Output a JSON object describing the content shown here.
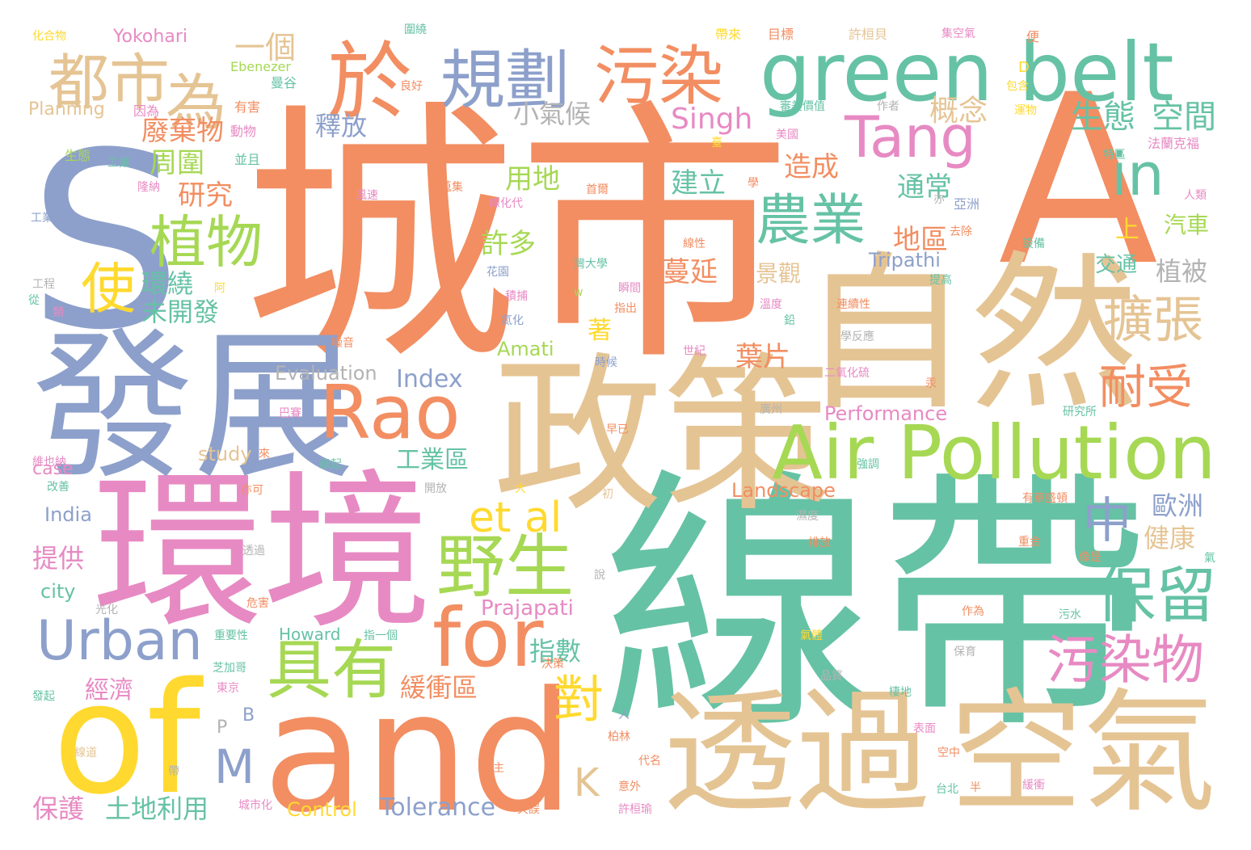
{
  "palette": {
    "orange": "#F28E62",
    "teal": "#66C2A5",
    "blue": "#8DA0CB",
    "pink": "#E78AC3",
    "green": "#A6D854",
    "yellow": "#FFD92F",
    "tan": "#E5C494",
    "gray": "#B3B3B3"
  },
  "words": [
    {
      "text": "城市",
      "color": "#F28E62"
    },
    {
      "text": "線帶",
      "color": "#66C2A5"
    },
    {
      "text": "S",
      "color": "#8DA0CB"
    },
    {
      "text": "A",
      "color": "#F28E62"
    },
    {
      "text": "環境",
      "color": "#E78AC3"
    },
    {
      "text": "發展",
      "color": "#8DA0CB"
    },
    {
      "text": "政策",
      "color": "#E5C494"
    },
    {
      "text": "自然",
      "color": "#E5C494"
    },
    {
      "text": "透過",
      "color": "#E5C494"
    },
    {
      "text": "空氣",
      "color": "#E5C494"
    },
    {
      "text": "and",
      "color": "#F28E62"
    },
    {
      "text": "of",
      "color": "#FFD92F"
    },
    {
      "text": "green belt",
      "color": "#66C2A5"
    },
    {
      "text": "Air Pollution",
      "color": "#A6D854"
    },
    {
      "text": "Rao",
      "color": "#F28E62"
    },
    {
      "text": "於",
      "color": "#F28E62"
    },
    {
      "text": "規劃",
      "color": "#8DA0CB"
    },
    {
      "text": "污染",
      "color": "#F28E62"
    },
    {
      "text": "都市",
      "color": "#E5C494"
    },
    {
      "text": "為",
      "color": "#E5C494"
    },
    {
      "text": "一個",
      "color": "#E5C494"
    },
    {
      "text": "Tang",
      "color": "#E78AC3"
    },
    {
      "text": "in",
      "color": "#66C2A5"
    },
    {
      "text": "農業",
      "color": "#66C2A5"
    },
    {
      "text": "植物",
      "color": "#A6D854"
    },
    {
      "text": "使",
      "color": "#FFD92F"
    },
    {
      "text": "for",
      "color": "#F28E62"
    },
    {
      "text": "et al",
      "color": "#FFD92F"
    },
    {
      "text": "野生",
      "color": "#A6D854"
    },
    {
      "text": "具有",
      "color": "#A6D854"
    },
    {
      "text": "Urban",
      "color": "#8DA0CB"
    },
    {
      "text": "擴張",
      "color": "#E5C494"
    },
    {
      "text": "耐受",
      "color": "#F28E62"
    },
    {
      "text": "保留",
      "color": "#66C2A5"
    },
    {
      "text": "污染物",
      "color": "#E78AC3"
    },
    {
      "text": "中",
      "color": "#8DA0CB"
    },
    {
      "text": "對",
      "color": "#FFD92F"
    },
    {
      "text": "M",
      "color": "#8DA0CB"
    },
    {
      "text": "K",
      "color": "#E5C494"
    },
    {
      "text": "生態",
      "color": "#66C2A5"
    },
    {
      "text": "空間",
      "color": "#66C2A5"
    },
    {
      "text": "概念",
      "color": "#E5C494"
    },
    {
      "text": "Singh",
      "color": "#E78AC3"
    },
    {
      "text": "小氣候",
      "color": "#B3B3B3"
    },
    {
      "text": "釋放",
      "color": "#8DA0CB"
    },
    {
      "text": "廢棄物",
      "color": "#F28E62"
    },
    {
      "text": "周圍",
      "color": "#A6D854"
    },
    {
      "text": "研究",
      "color": "#F28E62"
    },
    {
      "text": "用地",
      "color": "#A6D854"
    },
    {
      "text": "建立",
      "color": "#66C2A5"
    },
    {
      "text": "造成",
      "color": "#F28E62"
    },
    {
      "text": "通常",
      "color": "#66C2A5"
    },
    {
      "text": "地區",
      "color": "#F28E62"
    },
    {
      "text": "許多",
      "color": "#A6D854"
    },
    {
      "text": "蔓延",
      "color": "#F28E62"
    },
    {
      "text": "環繞",
      "color": "#66C2A5"
    },
    {
      "text": "未開發",
      "color": "#66C2A5"
    },
    {
      "text": "著",
      "color": "#FFD92F"
    },
    {
      "text": "葉片",
      "color": "#F28E62"
    },
    {
      "text": "Tripathi",
      "color": "#8DA0CB"
    },
    {
      "text": "植被",
      "color": "#B3B3B3"
    },
    {
      "text": "上",
      "color": "#FFD92F"
    },
    {
      "text": "汽車",
      "color": "#A6D854"
    },
    {
      "text": "交通",
      "color": "#66C2A5"
    },
    {
      "text": "景觀",
      "color": "#E5C494"
    },
    {
      "text": "Amati",
      "color": "#A6D854"
    },
    {
      "text": "Index",
      "color": "#8DA0CB"
    },
    {
      "text": "Evaluation",
      "color": "#B3B3B3"
    },
    {
      "text": "Performance",
      "color": "#E78AC3"
    },
    {
      "text": "工業區",
      "color": "#66C2A5"
    },
    {
      "text": "study",
      "color": "#E5C494"
    },
    {
      "text": "case",
      "color": "#E78AC3"
    },
    {
      "text": "India",
      "color": "#8DA0CB"
    },
    {
      "text": "Landscape",
      "color": "#F28E62"
    },
    {
      "text": "歐洲",
      "color": "#8DA0CB"
    },
    {
      "text": "健康",
      "color": "#E5C494"
    },
    {
      "text": "提供",
      "color": "#E78AC3"
    },
    {
      "text": "city",
      "color": "#66C2A5"
    },
    {
      "text": "Prajapati",
      "color": "#E78AC3"
    },
    {
      "text": "指數",
      "color": "#66C2A5"
    },
    {
      "text": "緩衝區",
      "color": "#F28E62"
    },
    {
      "text": "經濟",
      "color": "#E78AC3"
    },
    {
      "text": "Howard",
      "color": "#66C2A5"
    },
    {
      "text": "保護",
      "color": "#E78AC3"
    },
    {
      "text": "土地利用",
      "color": "#66C2A5"
    },
    {
      "text": "Control",
      "color": "#FFD92F"
    },
    {
      "text": "Tolerance",
      "color": "#8DA0CB"
    },
    {
      "text": "Yokohari",
      "color": "#E78AC3"
    },
    {
      "text": "Ebenezer",
      "color": "#A6D854"
    },
    {
      "text": "Planning",
      "color": "#E5C494"
    },
    {
      "text": "曼谷",
      "color": "#66C2A5"
    },
    {
      "text": "化合物",
      "color": "#FFD92F"
    },
    {
      "text": "圍繞",
      "color": "#66C2A5"
    },
    {
      "text": "帶來",
      "color": "#FFD92F"
    },
    {
      "text": "目標",
      "color": "#F28E62"
    },
    {
      "text": "許桓貝",
      "color": "#E5C494"
    },
    {
      "text": "集空氣",
      "color": "#E78AC3"
    },
    {
      "text": "便",
      "color": "#F28E62"
    },
    {
      "text": "D",
      "color": "#FFD92F"
    },
    {
      "text": "包含",
      "color": "#FFD92F"
    },
    {
      "text": "良好",
      "color": "#F28E62"
    },
    {
      "text": "因為",
      "color": "#E78AC3"
    },
    {
      "text": "有害",
      "color": "#F28E62"
    },
    {
      "text": "審美價值",
      "color": "#66C2A5"
    },
    {
      "text": "作者",
      "color": "#B3B3B3"
    },
    {
      "text": "臺",
      "color": "#FFD92F"
    },
    {
      "text": "運物",
      "color": "#FFD92F"
    },
    {
      "text": "動物",
      "color": "#E78AC3"
    },
    {
      "text": "美國",
      "color": "#E78AC3"
    },
    {
      "text": "法蘭克福",
      "color": "#E78AC3"
    },
    {
      "text": "生態",
      "color": "#A6D854"
    },
    {
      "text": "工業",
      "color": "#66C2A5"
    },
    {
      "text": "並且",
      "color": "#66C2A5"
    },
    {
      "text": "特區",
      "color": "#66C2A5"
    },
    {
      "text": "隆納",
      "color": "#E78AC3"
    },
    {
      "text": "風速",
      "color": "#E78AC3"
    },
    {
      "text": "蒐集",
      "color": "#F28E62"
    },
    {
      "text": "線化代",
      "color": "#E78AC3"
    },
    {
      "text": "首爾",
      "color": "#F28E62"
    },
    {
      "text": "學",
      "color": "#F28E62"
    },
    {
      "text": "亦",
      "color": "#B3B3B3"
    },
    {
      "text": "亞洲",
      "color": "#8DA0CB"
    },
    {
      "text": "人類",
      "color": "#E78AC3"
    },
    {
      "text": "工業化",
      "color": "#8DA0CB"
    },
    {
      "text": "線性",
      "color": "#F28E62"
    },
    {
      "text": "去除",
      "color": "#F28E62"
    },
    {
      "text": "設備",
      "color": "#66C2A5"
    },
    {
      "text": "花園",
      "color": "#8DA0CB"
    },
    {
      "text": "灣大學",
      "color": "#66C2A5"
    },
    {
      "text": "瞬間",
      "color": "#E78AC3"
    },
    {
      "text": "提高",
      "color": "#66C2A5"
    },
    {
      "text": "工程",
      "color": "#B3B3B3"
    },
    {
      "text": "從",
      "color": "#66C2A5"
    },
    {
      "text": "阿",
      "color": "#FFD92F"
    },
    {
      "text": "類",
      "color": "#E78AC3"
    },
    {
      "text": "積捕",
      "color": "#E78AC3"
    },
    {
      "text": "w",
      "color": "#A6D854"
    },
    {
      "text": "指出",
      "color": "#F28E62"
    },
    {
      "text": "溫度",
      "color": "#E78AC3"
    },
    {
      "text": "鉛",
      "color": "#66C2A5"
    },
    {
      "text": "連續性",
      "color": "#F28E62"
    },
    {
      "text": "氮化",
      "color": "#8DA0CB"
    },
    {
      "text": "噪音",
      "color": "#F28E62"
    },
    {
      "text": "學反應",
      "color": "#B3B3B3"
    },
    {
      "text": "世紀",
      "color": "#E78AC3"
    },
    {
      "text": "時候",
      "color": "#8DA0CB"
    },
    {
      "text": "二氧化硫",
      "color": "#E78AC3"
    },
    {
      "text": "汞",
      "color": "#F28E62"
    },
    {
      "text": "廣州",
      "color": "#B3B3B3"
    },
    {
      "text": "研究所",
      "color": "#66C2A5"
    },
    {
      "text": "巴賽",
      "color": "#E78AC3"
    },
    {
      "text": "早已",
      "color": "#F28E62"
    },
    {
      "text": "維也納",
      "color": "#E78AC3"
    },
    {
      "text": "來",
      "color": "#F28E62"
    },
    {
      "text": "綠起",
      "color": "#66C2A5"
    },
    {
      "text": "強調",
      "color": "#66C2A5"
    },
    {
      "text": "改善",
      "color": "#66C2A5"
    },
    {
      "text": "亦可",
      "color": "#F28E62"
    },
    {
      "text": "開放",
      "color": "#B3B3B3"
    },
    {
      "text": "大",
      "color": "#FFD92F"
    },
    {
      "text": "初",
      "color": "#E5C494"
    },
    {
      "text": "有華盛頓",
      "color": "#F28E62"
    },
    {
      "text": "濕度",
      "color": "#B3B3B3"
    },
    {
      "text": "排放",
      "color": "#F28E62"
    },
    {
      "text": "重金",
      "color": "#F28E62"
    },
    {
      "text": "氣",
      "color": "#66C2A5"
    },
    {
      "text": "透過",
      "color": "#B3B3B3"
    },
    {
      "text": "像是",
      "color": "#F28E62"
    },
    {
      "text": "說",
      "color": "#B3B3B3"
    },
    {
      "text": "光化",
      "color": "#B3B3B3"
    },
    {
      "text": "危害",
      "color": "#F28E62"
    },
    {
      "text": "作為",
      "color": "#F28E62"
    },
    {
      "text": "污水",
      "color": "#66C2A5"
    },
    {
      "text": "重要性",
      "color": "#66C2A5"
    },
    {
      "text": "指一個",
      "color": "#66C2A5"
    },
    {
      "text": "氣體",
      "color": "#FFD92F"
    },
    {
      "text": "保育",
      "color": "#B3B3B3"
    },
    {
      "text": "決策",
      "color": "#F28E62"
    },
    {
      "text": "芝加哥",
      "color": "#66C2A5"
    },
    {
      "text": "品質",
      "color": "#B3B3B3"
    },
    {
      "text": "發起",
      "color": "#66C2A5"
    },
    {
      "text": "東京",
      "color": "#E78AC3"
    },
    {
      "text": "棲地",
      "color": "#66C2A5"
    },
    {
      "text": "B",
      "color": "#8DA0CB"
    },
    {
      "text": "人",
      "color": "#8DA0CB"
    },
    {
      "text": "P",
      "color": "#B3B3B3"
    },
    {
      "text": "表面",
      "color": "#E78AC3"
    },
    {
      "text": "柏林",
      "color": "#F28E62"
    },
    {
      "text": "線道",
      "color": "#E5C494"
    },
    {
      "text": "代名",
      "color": "#F28E62"
    },
    {
      "text": "空中",
      "color": "#F28E62"
    },
    {
      "text": "主",
      "color": "#F28E62"
    },
    {
      "text": "帶",
      "color": "#B3B3B3"
    },
    {
      "text": "意外",
      "color": "#F28E62"
    },
    {
      "text": "台北",
      "color": "#66C2A5"
    },
    {
      "text": "半",
      "color": "#F28E62"
    },
    {
      "text": "緩衝",
      "color": "#E78AC3"
    },
    {
      "text": "城市化",
      "color": "#E78AC3"
    },
    {
      "text": "失誤",
      "color": "#F28E62"
    },
    {
      "text": "許桓瑜",
      "color": "#E78AC3"
    },
    {
      "text": "吸收",
      "color": "#B3B3B3"
    }
  ]
}
